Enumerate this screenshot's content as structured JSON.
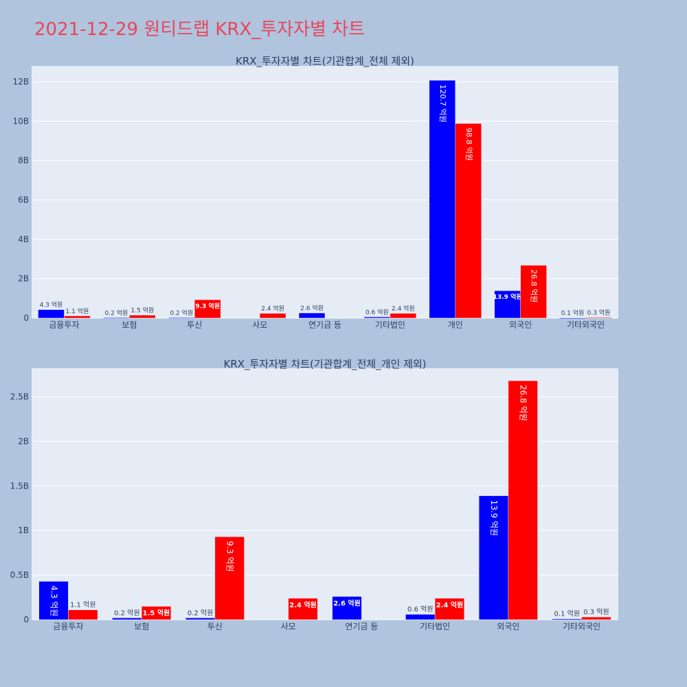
{
  "page": {
    "title": "2021-12-29 원티드랩 KRX_투자자별 차트",
    "title_color": "#e8465a",
    "background": "#b0c4de",
    "plot_background": "#e5ecf6"
  },
  "chart_data": [
    {
      "type": "bar",
      "title": "KRX_투자자별 차트(기관합계_전체 제외)",
      "categories": [
        "금융투자",
        "보험",
        "투신",
        "사모",
        "연기금 등",
        "기타법인",
        "개인",
        "외국인",
        "기타외국인"
      ],
      "series": [
        {
          "color": "#0000ff",
          "values": [
            430000000,
            20000000,
            20000000,
            0,
            260000000,
            60000000,
            12070000000,
            1390000000,
            10000000
          ],
          "labels": [
            "4.3 억원",
            "0.2 억원",
            "0.2 억원",
            "",
            "2.6 억원",
            "0.6 억원",
            "120.7 억원",
            "13.9 억원",
            "0.1 억원"
          ]
        },
        {
          "color": "#ff0000",
          "values": [
            110000000,
            150000000,
            930000000,
            240000000,
            0,
            240000000,
            9880000000,
            2680000000,
            30000000
          ],
          "labels": [
            "1.1 억원",
            "1.5 억원",
            "9.3 억원",
            "2.4 억원",
            "",
            "2.4 억원",
            "98.8 억원",
            "26.8 억원",
            "0.3 억원"
          ]
        }
      ],
      "yticks": [
        0,
        2000000000,
        4000000000,
        6000000000,
        8000000000,
        10000000000,
        12000000000
      ],
      "yticklabels": [
        "0",
        "2B",
        "4B",
        "6B",
        "8B",
        "10B",
        "12B"
      ],
      "ylim": [
        0,
        12800000000
      ],
      "xlabel": "",
      "ylabel": "",
      "grid": true
    },
    {
      "type": "bar",
      "title": "KRX_투자자별 차트(기관합계_전체_개인 제외)",
      "categories": [
        "금융투자",
        "보험",
        "투신",
        "사모",
        "연기금 등",
        "기타법인",
        "외국인",
        "기타외국인"
      ],
      "series": [
        {
          "color": "#0000ff",
          "values": [
            430000000,
            20000000,
            20000000,
            0,
            260000000,
            60000000,
            1390000000,
            10000000
          ],
          "labels": [
            "4.3 억원",
            "0.2 억원",
            "0.2 억원",
            "",
            "2.6 억원",
            "0.6 억원",
            "13.9 억원",
            "0.1 억원"
          ]
        },
        {
          "color": "#ff0000",
          "values": [
            110000000,
            150000000,
            930000000,
            240000000,
            0,
            240000000,
            2680000000,
            30000000
          ],
          "labels": [
            "1.1 억원",
            "1.5 억원",
            "9.3 억원",
            "2.4 억원",
            "",
            "2.4 억원",
            "26.8 억원",
            "0.3 억원"
          ]
        }
      ],
      "yticks": [
        0,
        500000000,
        1000000000,
        1500000000,
        2000000000,
        2500000000
      ],
      "yticklabels": [
        "0",
        "0.5B",
        "1B",
        "1.5B",
        "2B",
        "2.5B"
      ],
      "ylim": [
        0,
        2820000000
      ],
      "xlabel": "",
      "ylabel": "",
      "grid": true
    }
  ]
}
